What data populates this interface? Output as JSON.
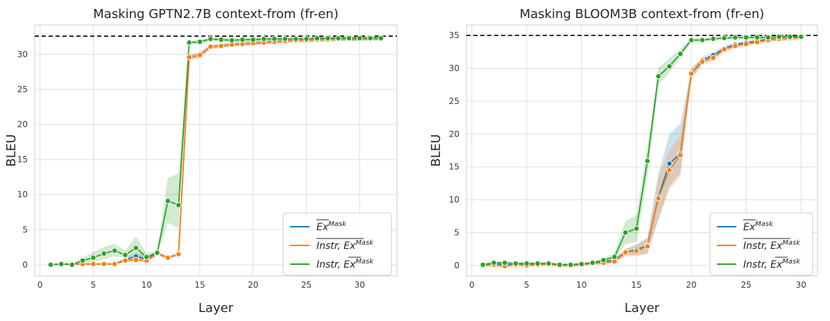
{
  "chart_data": [
    {
      "type": "line",
      "title": "Masking GPTN2.7B context-from (fr-en)",
      "xlabel": "Layer",
      "ylabel": "BLEU",
      "xlim": [
        -0.5,
        33.5
      ],
      "ylim": [
        -1.6,
        34.2
      ],
      "xticks": [
        0,
        5,
        10,
        15,
        20,
        25,
        30
      ],
      "yticks": [
        0,
        5,
        10,
        15,
        20,
        25,
        30
      ],
      "grid": true,
      "legend": "bottom-right",
      "baseline": 32.6,
      "x": [
        1,
        2,
        3,
        4,
        5,
        6,
        7,
        8,
        9,
        10,
        11,
        12,
        13,
        14,
        15,
        16,
        17,
        18,
        19,
        20,
        21,
        22,
        23,
        24,
        25,
        26,
        27,
        28,
        29,
        30,
        31,
        32
      ],
      "series": [
        {
          "name": "Ex^Mask",
          "color": "#1f77b4",
          "values": [
            0,
            0.1,
            0.1,
            0.1,
            0.1,
            0.1,
            0.1,
            0.7,
            1.2,
            0.8,
            1.6,
            1,
            1.5,
            29.6,
            29.9,
            31.1,
            31.2,
            31.4,
            31.5,
            31.6,
            31.7,
            31.8,
            31.9,
            32,
            32,
            32.1,
            32.1,
            32.2,
            32.2,
            32.2,
            32.3,
            32.3
          ],
          "lower": [
            0,
            0,
            0,
            0,
            0,
            0,
            0,
            0.4,
            0.6,
            0.4,
            1.3,
            0.8,
            1.3,
            29.2,
            29.5,
            30.8,
            30.9,
            31.1,
            31.2,
            31.3,
            31.4,
            31.5,
            31.6,
            31.7,
            31.7,
            31.8,
            31.8,
            31.9,
            31.9,
            31.9,
            32,
            32
          ],
          "upper": [
            0.1,
            0.2,
            0.2,
            0.2,
            0.2,
            0.2,
            0.2,
            1,
            1.8,
            1.2,
            1.9,
            1.2,
            1.7,
            30,
            30.3,
            31.4,
            31.5,
            31.7,
            31.8,
            31.9,
            32,
            32.1,
            32.2,
            32.3,
            32.3,
            32.4,
            32.4,
            32.5,
            32.5,
            32.5,
            32.6,
            32.6
          ]
        },
        {
          "name": "Instr, Ex^Mask",
          "color": "#ff7f0e",
          "values": [
            0,
            0.1,
            0.1,
            0.1,
            0.1,
            0.1,
            0.1,
            0.6,
            0.7,
            0.6,
            1.6,
            1,
            1.5,
            29.6,
            29.9,
            31.1,
            31.2,
            31.4,
            31.5,
            31.6,
            31.7,
            31.8,
            31.9,
            32,
            32,
            32.1,
            32.1,
            32.2,
            32.2,
            32.2,
            32.3,
            32.3
          ],
          "lower": [
            0,
            0,
            0,
            0,
            0,
            0,
            0,
            0.3,
            0.4,
            0.3,
            1.3,
            0.8,
            1.3,
            29.2,
            29.5,
            30.8,
            30.9,
            31.1,
            31.2,
            31.3,
            31.4,
            31.5,
            31.6,
            31.7,
            31.7,
            31.8,
            31.8,
            31.9,
            31.9,
            31.9,
            32,
            32
          ],
          "upper": [
            0.1,
            0.2,
            0.2,
            0.2,
            0.2,
            0.2,
            0.2,
            0.9,
            1,
            0.9,
            1.9,
            1.2,
            1.7,
            30,
            30.3,
            31.4,
            31.5,
            31.7,
            31.8,
            31.9,
            32,
            32.1,
            32.2,
            32.3,
            32.3,
            32.4,
            32.4,
            32.5,
            32.5,
            32.5,
            32.6,
            32.6
          ]
        },
        {
          "name": "Instr, Ex^Mask",
          "color": "#2ca02c",
          "values": [
            0,
            0.1,
            0,
            0.6,
            1,
            1.6,
            2,
            1.4,
            2.4,
            1.1,
            1.7,
            9.1,
            8.5,
            31.7,
            31.8,
            32.2,
            32.1,
            32,
            32.1,
            32.1,
            32.2,
            32.2,
            32.2,
            32.2,
            32.2,
            32.3,
            32.3,
            32.3,
            32.3,
            32.3,
            32.3,
            32.3
          ],
          "lower": [
            0,
            0,
            0,
            0.2,
            0.4,
            0.8,
            1.2,
            1,
            1,
            0.7,
            1.4,
            6,
            5.2,
            31.4,
            31.5,
            31.9,
            31.8,
            31.7,
            31.8,
            31.8,
            31.9,
            31.9,
            31.9,
            31.9,
            31.9,
            32,
            32,
            32,
            32,
            32,
            32,
            32
          ],
          "upper": [
            0.1,
            0.2,
            0.1,
            1,
            1.8,
            2.5,
            3,
            2,
            4,
            1.6,
            2,
            12.4,
            13,
            32,
            32.1,
            32.5,
            32.4,
            32.3,
            32.4,
            32.4,
            32.5,
            32.5,
            32.5,
            32.5,
            32.5,
            32.6,
            32.6,
            32.6,
            32.6,
            32.6,
            32.6,
            32.6
          ]
        }
      ]
    },
    {
      "type": "line",
      "title": "Masking BLOOM3B context-from (fr-en)",
      "xlabel": "Layer",
      "ylabel": "BLEU",
      "xlim": [
        -0.5,
        31.5
      ],
      "ylim": [
        -1.6,
        36.6
      ],
      "xticks": [
        0,
        5,
        10,
        15,
        20,
        25,
        30
      ],
      "yticks": [
        0,
        5,
        10,
        15,
        20,
        25,
        30,
        35
      ],
      "grid": true,
      "legend": "bottom-right",
      "baseline": 35.0,
      "x": [
        1,
        2,
        3,
        4,
        5,
        6,
        7,
        8,
        9,
        10,
        11,
        12,
        13,
        14,
        15,
        16,
        17,
        18,
        19,
        20,
        21,
        22,
        23,
        24,
        25,
        26,
        27,
        28,
        29,
        30
      ],
      "series": [
        {
          "name": "Ex^Mask",
          "color": "#1f77b4",
          "values": [
            0.1,
            0.2,
            0.1,
            0.1,
            0.2,
            0.1,
            0.2,
            0.1,
            0.1,
            0.2,
            0.3,
            0.5,
            0.8,
            2,
            2.4,
            3,
            10.4,
            15.5,
            17,
            29.2,
            31.2,
            32,
            33,
            33.6,
            33.9,
            34.1,
            34.4,
            34.5,
            34.6,
            34.8
          ],
          "lower": [
            0,
            0,
            0,
            0,
            0,
            0,
            0,
            0,
            0,
            0,
            0.1,
            0.3,
            0.5,
            1.5,
            1.6,
            1.8,
            7,
            12,
            14,
            28.5,
            30.7,
            31.6,
            32.6,
            33.3,
            33.6,
            33.8,
            34.1,
            34.2,
            34.3,
            34.5
          ],
          "upper": [
            0.3,
            0.4,
            0.3,
            0.3,
            0.4,
            0.3,
            0.4,
            0.3,
            0.3,
            0.4,
            0.5,
            0.7,
            1.1,
            2.5,
            3.2,
            4.2,
            14,
            20,
            21.5,
            29.9,
            31.7,
            32.4,
            33.4,
            33.9,
            34.2,
            34.4,
            34.7,
            34.8,
            34.9,
            35.1
          ]
        },
        {
          "name": "Instr, Ex^Mask",
          "color": "#ff7f0e",
          "values": [
            0,
            0.1,
            -0.1,
            0.1,
            0,
            0.1,
            0.2,
            0,
            0,
            0.1,
            0.3,
            0.4,
            0.6,
            2,
            2.2,
            2.9,
            10.2,
            14.5,
            16.8,
            29.2,
            31,
            31.6,
            32.9,
            33.4,
            33.7,
            34,
            34.3,
            34.5,
            34.6,
            34.7
          ],
          "lower": [
            -0.3,
            -0.2,
            -0.4,
            -0.2,
            -0.3,
            -0.2,
            -0.1,
            -0.3,
            -0.3,
            -0.2,
            0,
            0.1,
            0.2,
            1.4,
            1.4,
            1.7,
            7,
            11.5,
            13.5,
            28.3,
            30.4,
            31.1,
            32.4,
            33,
            33.3,
            33.6,
            33.9,
            34.1,
            34.2,
            34.3
          ],
          "upper": [
            0.3,
            0.4,
            0.2,
            0.4,
            0.3,
            0.4,
            0.5,
            0.3,
            0.3,
            0.4,
            0.6,
            0.7,
            1,
            2.6,
            3,
            4.2,
            13.5,
            17.5,
            19.8,
            30.1,
            31.6,
            32.1,
            33.4,
            33.8,
            34.1,
            34.4,
            34.7,
            34.9,
            35,
            35.1
          ]
        },
        {
          "name": "Instr, Ex^Mask",
          "color": "#2ca02c",
          "values": [
            0.1,
            0.4,
            0.4,
            0.3,
            0.3,
            0.3,
            0.3,
            0.1,
            0.1,
            0.2,
            0.4,
            0.8,
            1.3,
            5,
            5.6,
            15.9,
            28.8,
            30.3,
            32.2,
            34.3,
            34.3,
            34.5,
            34.6,
            34.7,
            34.7,
            34.7,
            34.7,
            34.8,
            34.8,
            34.8
          ],
          "lower": [
            0,
            0.2,
            0.2,
            0.1,
            0.1,
            0.1,
            0.1,
            0,
            0,
            0,
            0.2,
            0.5,
            0.9,
            3.2,
            3.6,
            13.5,
            27.5,
            29.3,
            31.6,
            34,
            34,
            34.2,
            34.3,
            34.4,
            34.4,
            34.4,
            34.4,
            34.5,
            34.5,
            34.5
          ],
          "upper": [
            0.3,
            0.6,
            0.6,
            0.5,
            0.5,
            0.5,
            0.5,
            0.3,
            0.3,
            0.4,
            0.6,
            1.1,
            1.8,
            6.8,
            7.6,
            18.2,
            30.1,
            31.5,
            32.9,
            34.6,
            34.6,
            34.8,
            34.9,
            35,
            35,
            35,
            35,
            35.1,
            35.1,
            35.1
          ]
        }
      ]
    }
  ]
}
